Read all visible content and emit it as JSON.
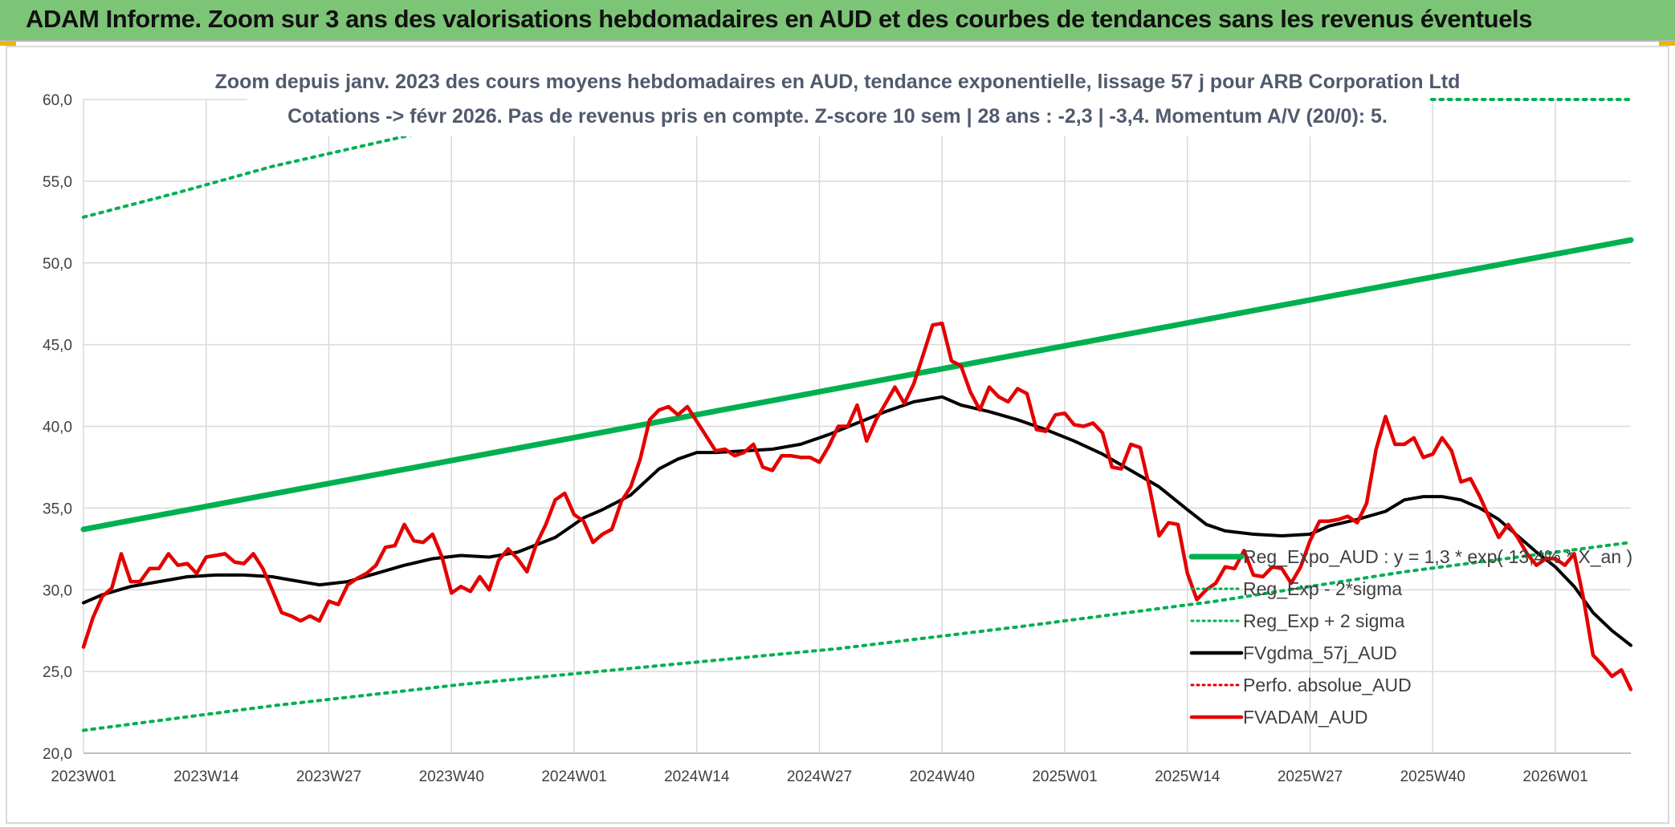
{
  "header": {
    "title": "ADAM Informe. Zoom sur 3 ans des valorisations hebdomadaires en AUD et des courbes de tendances sans les revenus éventuels"
  },
  "chart_data": {
    "type": "line",
    "subtitle_line1": "Zoom depuis janv. 2023 des cours moyens hebdomadaires en AUD, tendance exponentielle, lissage 57 j pour ARB Corporation Ltd",
    "subtitle_line2": "Cotations -> févr 2026. Pas de revenus pris en compte. Z-score 10 sem | 28 ans : -2,3 | -3,4. Momentum A/V (20/0): 5.",
    "x_range": [
      0,
      164
    ],
    "ylim": [
      20,
      60
    ],
    "y_ticks": [
      "20,0",
      "25,0",
      "30,0",
      "35,0",
      "40,0",
      "45,0",
      "50,0",
      "55,0",
      "60,0"
    ],
    "x_ticks": [
      {
        "label": "2023W01",
        "x": 0
      },
      {
        "label": "2023W14",
        "x": 13
      },
      {
        "label": "2023W27",
        "x": 26
      },
      {
        "label": "2023W40",
        "x": 39
      },
      {
        "label": "2024W01",
        "x": 52
      },
      {
        "label": "2024W14",
        "x": 65
      },
      {
        "label": "2024W27",
        "x": 78
      },
      {
        "label": "2024W40",
        "x": 91
      },
      {
        "label": "2025W01",
        "x": 104
      },
      {
        "label": "2025W14",
        "x": 117
      },
      {
        "label": "2025W27",
        "x": 130
      },
      {
        "label": "2025W40",
        "x": 143
      },
      {
        "label": "2026W01",
        "x": 156
      }
    ],
    "grid": "horizontal and vertical",
    "legend_position": "bottom-right",
    "series": [
      {
        "name": "Reg_Expo_AUD : y = 1,3 * exp( 13,4% * X_an )",
        "color": "#00b050",
        "style": "solid-thick",
        "points": [
          [
            0,
            33.7
          ],
          [
            164,
            51.4
          ]
        ]
      },
      {
        "name": "Reg_Exp - 2*sigma",
        "color": "#00b050",
        "style": "dotted",
        "points": [
          [
            0,
            21.4
          ],
          [
            20,
            22.9
          ],
          [
            40,
            24.2
          ],
          [
            60,
            25.3
          ],
          [
            80,
            26.4
          ],
          [
            100,
            27.8
          ],
          [
            120,
            29.3
          ],
          [
            140,
            31.1
          ],
          [
            164,
            32.9
          ]
        ]
      },
      {
        "name": "Reg_Exp + 2 sigma",
        "color": "#00b050",
        "style": "dotted",
        "points": [
          [
            0,
            52.8
          ],
          [
            10,
            54.3
          ],
          [
            20,
            55.9
          ],
          [
            36,
            58.0
          ],
          [
            36,
            null
          ],
          [
            142,
            60.0
          ],
          [
            164,
            60.0
          ]
        ]
      },
      {
        "name": "FVgdma_57j_AUD",
        "color": "#000000",
        "style": "solid",
        "points": [
          [
            0,
            29.2
          ],
          [
            2,
            29.7
          ],
          [
            5,
            30.2
          ],
          [
            8,
            30.5
          ],
          [
            11,
            30.8
          ],
          [
            14,
            30.9
          ],
          [
            17,
            30.9
          ],
          [
            20,
            30.8
          ],
          [
            23,
            30.5
          ],
          [
            25,
            30.3
          ],
          [
            28,
            30.5
          ],
          [
            31,
            31.0
          ],
          [
            34,
            31.5
          ],
          [
            37,
            31.9
          ],
          [
            40,
            32.1
          ],
          [
            43,
            32.0
          ],
          [
            46,
            32.3
          ],
          [
            50,
            33.2
          ],
          [
            53,
            34.4
          ],
          [
            55,
            34.9
          ],
          [
            58,
            35.8
          ],
          [
            61,
            37.4
          ],
          [
            63,
            38.0
          ],
          [
            65,
            38.4
          ],
          [
            67,
            38.4
          ],
          [
            70,
            38.5
          ],
          [
            73,
            38.6
          ],
          [
            76,
            38.9
          ],
          [
            79,
            39.5
          ],
          [
            82,
            40.2
          ],
          [
            85,
            40.9
          ],
          [
            88,
            41.5
          ],
          [
            91,
            41.8
          ],
          [
            93,
            41.3
          ],
          [
            96,
            40.9
          ],
          [
            99,
            40.4
          ],
          [
            102,
            39.8
          ],
          [
            105,
            39.1
          ],
          [
            108,
            38.3
          ],
          [
            111,
            37.3
          ],
          [
            114,
            36.3
          ],
          [
            117,
            34.9
          ],
          [
            119,
            34.0
          ],
          [
            121,
            33.6
          ],
          [
            124,
            33.4
          ],
          [
            127,
            33.3
          ],
          [
            130,
            33.4
          ],
          [
            132,
            33.9
          ],
          [
            135,
            34.3
          ],
          [
            138,
            34.8
          ],
          [
            140,
            35.5
          ],
          [
            142,
            35.7
          ],
          [
            144,
            35.7
          ],
          [
            146,
            35.5
          ],
          [
            148,
            35.0
          ],
          [
            150,
            34.3
          ],
          [
            152,
            33.3
          ],
          [
            154,
            32.3
          ],
          [
            156,
            31.4
          ],
          [
            158,
            30.2
          ],
          [
            160,
            28.6
          ],
          [
            162,
            27.5
          ],
          [
            164,
            26.6
          ]
        ]
      },
      {
        "name": "Perfo. absolue_AUD",
        "color": "#e00000",
        "style": "dotted",
        "points": []
      },
      {
        "name": "FVADAM_AUD",
        "color": "#e40000",
        "style": "solid-medium",
        "points": [
          [
            0,
            26.5
          ],
          [
            1,
            28.3
          ],
          [
            2,
            29.6
          ],
          [
            3,
            30.1
          ],
          [
            4,
            32.2
          ],
          [
            5,
            30.5
          ],
          [
            6,
            30.5
          ],
          [
            7,
            31.3
          ],
          [
            8,
            31.3
          ],
          [
            9,
            32.2
          ],
          [
            10,
            31.5
          ],
          [
            11,
            31.6
          ],
          [
            12,
            31.0
          ],
          [
            13,
            32.0
          ],
          [
            14,
            32.1
          ],
          [
            15,
            32.2
          ],
          [
            16,
            31.7
          ],
          [
            17,
            31.6
          ],
          [
            18,
            32.2
          ],
          [
            19,
            31.3
          ],
          [
            20,
            30.0
          ],
          [
            21,
            28.6
          ],
          [
            22,
            28.4
          ],
          [
            23,
            28.1
          ],
          [
            24,
            28.4
          ],
          [
            25,
            28.1
          ],
          [
            26,
            29.3
          ],
          [
            27,
            29.1
          ],
          [
            28,
            30.3
          ],
          [
            29,
            30.7
          ],
          [
            30,
            31.0
          ],
          [
            31,
            31.5
          ],
          [
            32,
            32.6
          ],
          [
            33,
            32.7
          ],
          [
            34,
            34.0
          ],
          [
            35,
            33.0
          ],
          [
            36,
            32.9
          ],
          [
            37,
            33.4
          ],
          [
            38,
            32.0
          ],
          [
            39,
            29.8
          ],
          [
            40,
            30.2
          ],
          [
            41,
            29.9
          ],
          [
            42,
            30.8
          ],
          [
            43,
            30.0
          ],
          [
            44,
            31.8
          ],
          [
            45,
            32.5
          ],
          [
            46,
            31.9
          ],
          [
            47,
            31.1
          ],
          [
            48,
            32.8
          ],
          [
            49,
            34.0
          ],
          [
            50,
            35.5
          ],
          [
            51,
            35.9
          ],
          [
            52,
            34.6
          ],
          [
            53,
            34.2
          ],
          [
            54,
            32.9
          ],
          [
            55,
            33.4
          ],
          [
            56,
            33.7
          ],
          [
            57,
            35.4
          ],
          [
            58,
            36.3
          ],
          [
            59,
            38.0
          ],
          [
            60,
            40.4
          ],
          [
            61,
            41.0
          ],
          [
            62,
            41.2
          ],
          [
            63,
            40.7
          ],
          [
            64,
            41.2
          ],
          [
            65,
            40.3
          ],
          [
            66,
            39.4
          ],
          [
            67,
            38.5
          ],
          [
            68,
            38.6
          ],
          [
            69,
            38.2
          ],
          [
            70,
            38.4
          ],
          [
            71,
            38.9
          ],
          [
            72,
            37.5
          ],
          [
            73,
            37.3
          ],
          [
            74,
            38.2
          ],
          [
            75,
            38.2
          ],
          [
            76,
            38.1
          ],
          [
            77,
            38.1
          ],
          [
            78,
            37.8
          ],
          [
            79,
            38.8
          ],
          [
            80,
            40.0
          ],
          [
            81,
            40.0
          ],
          [
            82,
            41.3
          ],
          [
            83,
            39.1
          ],
          [
            84,
            40.4
          ],
          [
            85,
            41.4
          ],
          [
            86,
            42.4
          ],
          [
            87,
            41.4
          ],
          [
            88,
            42.6
          ],
          [
            89,
            44.4
          ],
          [
            90,
            46.2
          ],
          [
            91,
            46.3
          ],
          [
            92,
            44.0
          ],
          [
            93,
            43.7
          ],
          [
            94,
            42.1
          ],
          [
            95,
            41.0
          ],
          [
            96,
            42.4
          ],
          [
            97,
            41.8
          ],
          [
            98,
            41.5
          ],
          [
            99,
            42.3
          ],
          [
            100,
            42.0
          ],
          [
            101,
            39.8
          ],
          [
            102,
            39.7
          ],
          [
            103,
            40.7
          ],
          [
            104,
            40.8
          ],
          [
            105,
            40.1
          ],
          [
            106,
            40.0
          ],
          [
            107,
            40.2
          ],
          [
            108,
            39.6
          ],
          [
            109,
            37.5
          ],
          [
            110,
            37.4
          ],
          [
            111,
            38.9
          ],
          [
            112,
            38.7
          ],
          [
            113,
            36.2
          ],
          [
            114,
            33.3
          ],
          [
            115,
            34.1
          ],
          [
            116,
            34.0
          ],
          [
            117,
            31.0
          ],
          [
            118,
            29.4
          ],
          [
            119,
            30.0
          ],
          [
            120,
            30.4
          ],
          [
            121,
            31.4
          ],
          [
            122,
            31.3
          ],
          [
            123,
            32.4
          ],
          [
            124,
            30.9
          ],
          [
            125,
            30.8
          ],
          [
            126,
            31.4
          ],
          [
            127,
            31.3
          ],
          [
            128,
            30.4
          ],
          [
            129,
            31.4
          ],
          [
            130,
            33.0
          ],
          [
            131,
            34.2
          ],
          [
            132,
            34.2
          ],
          [
            133,
            34.3
          ],
          [
            134,
            34.5
          ],
          [
            135,
            34.1
          ],
          [
            136,
            35.3
          ],
          [
            137,
            38.6
          ],
          [
            138,
            40.6
          ],
          [
            139,
            38.9
          ],
          [
            140,
            38.9
          ],
          [
            141,
            39.3
          ],
          [
            142,
            38.1
          ],
          [
            143,
            38.3
          ],
          [
            144,
            39.3
          ],
          [
            145,
            38.5
          ],
          [
            146,
            36.6
          ],
          [
            147,
            36.8
          ],
          [
            148,
            35.7
          ],
          [
            149,
            34.4
          ],
          [
            150,
            33.2
          ],
          [
            151,
            34.0
          ],
          [
            152,
            33.2
          ],
          [
            153,
            32.2
          ],
          [
            154,
            31.5
          ],
          [
            155,
            31.9
          ],
          [
            156,
            31.9
          ],
          [
            157,
            31.5
          ],
          [
            158,
            32.2
          ],
          [
            159,
            29.4
          ],
          [
            160,
            26.0
          ],
          [
            161,
            25.4
          ],
          [
            162,
            24.7
          ],
          [
            163,
            25.1
          ],
          [
            164,
            23.9
          ]
        ]
      }
    ]
  }
}
